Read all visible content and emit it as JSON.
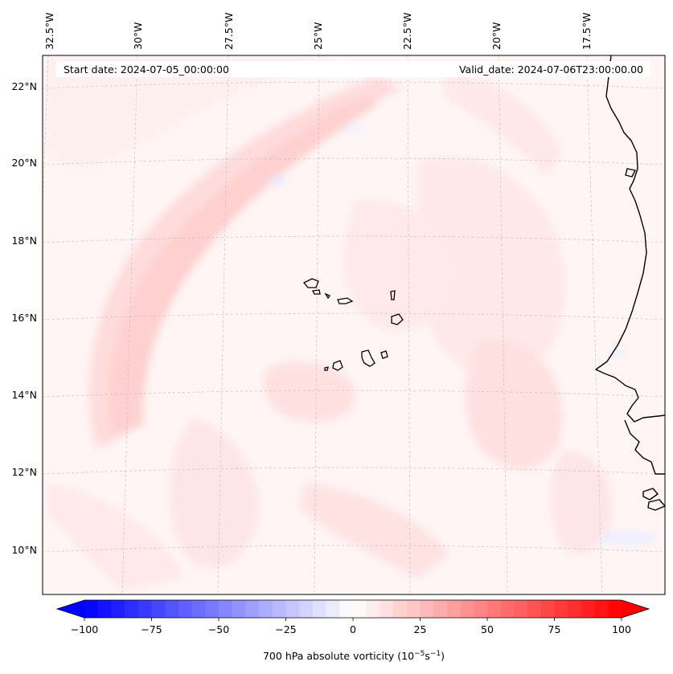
{
  "header": {
    "start_date": "Start date: 2024-07-05_00:00:00",
    "valid_date": "Valid_date: 2024-07-06T23:00:00.00"
  },
  "map": {
    "lon_labels": [
      "32.5°W",
      "30°W",
      "27.5°W",
      "25°W",
      "22.5°W",
      "20°W",
      "17.5°W"
    ],
    "lat_labels": [
      "22°N",
      "20°N",
      "18°N",
      "16°N",
      "14°N",
      "12°N",
      "10°N"
    ],
    "field": "700 hPa absolute vorticity"
  },
  "colorbar": {
    "ticks": [
      "−100",
      "−75",
      "−50",
      "−25",
      "0",
      "25",
      "50",
      "75",
      "100"
    ],
    "label": "700 hPa absolute vorticity (10",
    "label_exp1": "−5",
    "label_mid": "s",
    "label_exp2": "−1",
    "label_end": ")",
    "min_color": "#0000ff",
    "max_color": "#ff0000"
  }
}
